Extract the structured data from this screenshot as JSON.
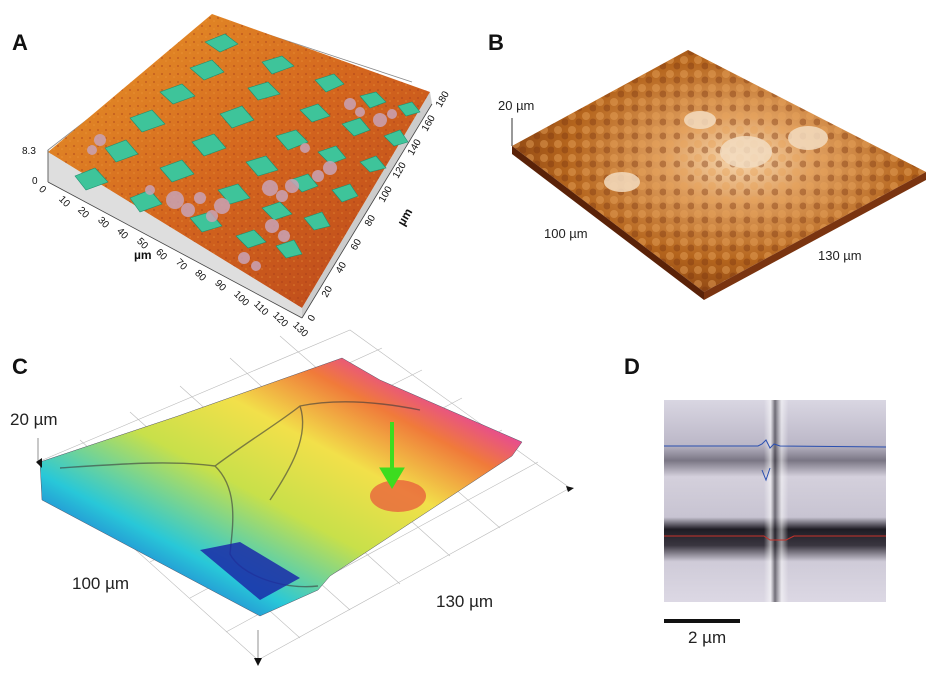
{
  "panels": {
    "a": {
      "letter": "A",
      "z_min": "0",
      "z_max": "8.3",
      "x_unit": "µm",
      "y_unit": "µm",
      "x_ticks": [
        "0",
        "10",
        "20",
        "30",
        "40",
        "50",
        "60",
        "70",
        "80",
        "90",
        "100",
        "110",
        "120",
        "130"
      ],
      "y_ticks": [
        "0",
        "20",
        "40",
        "60",
        "80",
        "100",
        "120",
        "140",
        "160",
        "180"
      ]
    },
    "b": {
      "letter": "B",
      "z_label": "20 µm",
      "x_label": "100 µm",
      "y_label": "130 µm"
    },
    "c": {
      "letter": "C",
      "z_label": "20 µm",
      "x_label": "100 µm",
      "y_label": "130 µm"
    },
    "d": {
      "letter": "D",
      "scale_label": "2 µm"
    }
  },
  "colors": {
    "orange_surface": "#d4661e",
    "green_patch": "#3ec49a",
    "afm_brown": "#b5651d",
    "arrow_green": "#3ddc1f",
    "profile_blue": "#2a4fb0",
    "profile_red": "#c8322a"
  }
}
